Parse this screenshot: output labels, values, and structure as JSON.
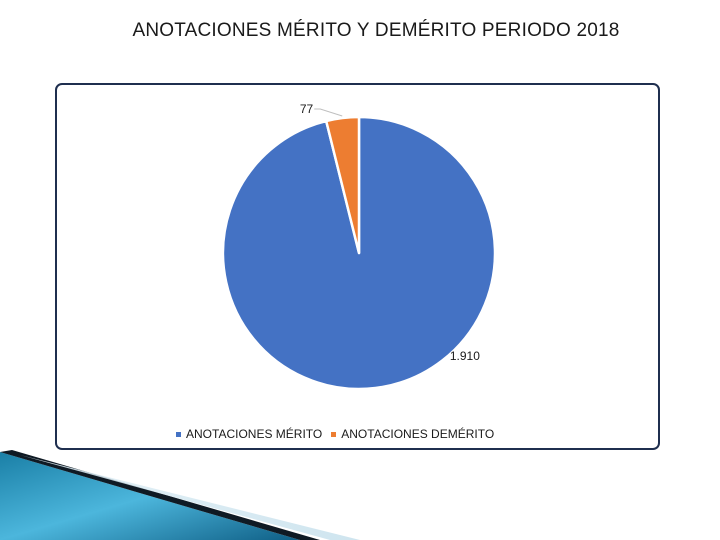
{
  "slide": {
    "title": "ANOTACIONES MÉRITO Y DEMÉRITO PERIODO 2018"
  },
  "chart_data": {
    "type": "pie",
    "title": "",
    "categories": [
      "ANOTACIONES MÉRITO",
      "ANOTACIONES DEMÉRITO"
    ],
    "values": [
      1910,
      77
    ],
    "data_labels": [
      "1.910",
      "77"
    ],
    "colors": [
      "#4472c4",
      "#ed7d31"
    ],
    "legend_position": "bottom"
  }
}
